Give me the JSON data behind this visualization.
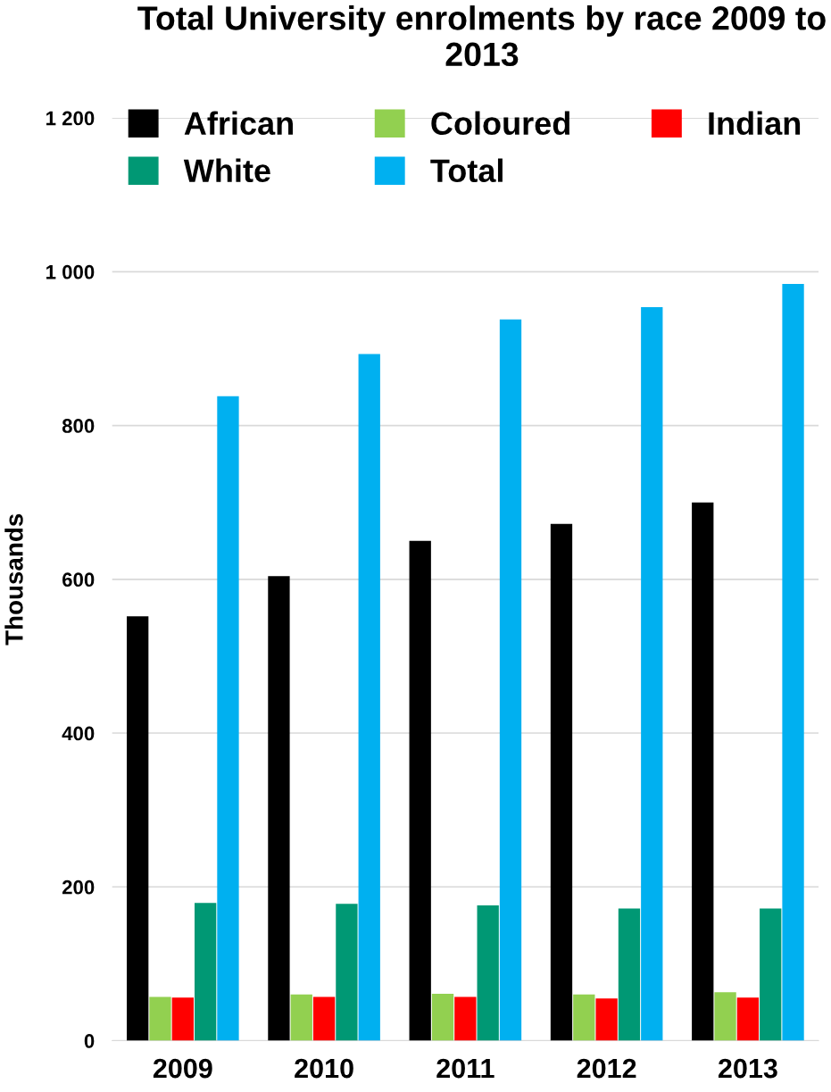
{
  "chart_data": {
    "type": "bar",
    "title": "Total University enrolments by race 2009 to 2013",
    "ylabel": "Thousands",
    "categories": [
      "2009",
      "2010",
      "2011",
      "2012",
      "2013"
    ],
    "series": [
      {
        "name": "African",
        "color": "#000000",
        "values": [
          552,
          604,
          650,
          672,
          700
        ]
      },
      {
        "name": "Coloured",
        "color": "#92d050",
        "values": [
          57,
          60,
          61,
          60,
          63
        ]
      },
      {
        "name": "Indian",
        "color": "#ff0000",
        "values": [
          56,
          57,
          57,
          55,
          56
        ]
      },
      {
        "name": "White",
        "color": "#009874",
        "values": [
          179,
          178,
          176,
          172,
          172
        ]
      },
      {
        "name": "Total",
        "color": "#00b0f0",
        "values": [
          838,
          893,
          938,
          954,
          984
        ]
      }
    ],
    "ylim": [
      0,
      1200
    ],
    "yticks": [
      0,
      200,
      400,
      600,
      800,
      {
        "value": 1000,
        "label": "1 000"
      },
      {
        "value": 1200,
        "label": "1 200"
      }
    ],
    "grid": "y",
    "legend": "top"
  }
}
